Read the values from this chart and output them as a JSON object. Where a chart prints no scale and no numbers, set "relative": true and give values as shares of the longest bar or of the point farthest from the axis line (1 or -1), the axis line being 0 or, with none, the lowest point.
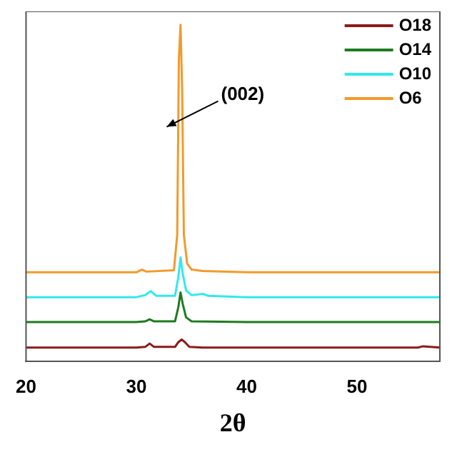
{
  "chart_data": {
    "type": "line",
    "xlabel": "2θ",
    "relative": true,
    "xlim": [
      20,
      57.5
    ],
    "xticks": [
      20,
      30,
      40,
      50
    ],
    "legend": "top right",
    "grid": false,
    "marker": "none",
    "line_style": "solid",
    "annotations": [
      "(002)"
    ],
    "series": [
      {
        "name": "O18",
        "color": "#8b1a1a",
        "x": [
          20,
          30,
          30.8,
          31.2,
          31.6,
          33.5,
          33.8,
          34.1,
          34.4,
          34.8,
          36,
          40,
          50,
          55.5,
          56,
          57.5
        ],
        "values": [
          0.04,
          0.04,
          0.042,
          0.052,
          0.042,
          0.042,
          0.056,
          0.064,
          0.056,
          0.042,
          0.04,
          0.04,
          0.04,
          0.04,
          0.044,
          0.04
        ]
      },
      {
        "name": "O14",
        "color": "#1e7b1e",
        "x": [
          20,
          30,
          30.8,
          31.2,
          31.6,
          33.5,
          33.8,
          34.0,
          34.2,
          34.5,
          35,
          40,
          50,
          57.5
        ],
        "values": [
          0.116,
          0.116,
          0.118,
          0.124,
          0.118,
          0.118,
          0.16,
          0.204,
          0.17,
          0.13,
          0.118,
          0.116,
          0.116,
          0.116
        ]
      },
      {
        "name": "O10",
        "color": "#33e8ee",
        "x": [
          20,
          30,
          30.8,
          31.3,
          31.8,
          33.5,
          33.8,
          34.0,
          34.2,
          34.5,
          35,
          35.6,
          36,
          36.5,
          40,
          50,
          57.5
        ],
        "values": [
          0.19,
          0.19,
          0.196,
          0.208,
          0.194,
          0.194,
          0.25,
          0.308,
          0.26,
          0.21,
          0.196,
          0.198,
          0.2,
          0.194,
          0.19,
          0.19,
          0.19
        ]
      },
      {
        "name": "O6",
        "color": "#f39a2c",
        "x": [
          20,
          30,
          30.5,
          30.9,
          33.4,
          33.7,
          33.85,
          34.0,
          34.15,
          34.3,
          34.6,
          35,
          36,
          40,
          50,
          57.5
        ],
        "values": [
          0.264,
          0.264,
          0.272,
          0.266,
          0.27,
          0.376,
          0.9,
          1.0,
          0.8,
          0.376,
          0.29,
          0.272,
          0.268,
          0.264,
          0.264,
          0.264
        ]
      }
    ]
  }
}
